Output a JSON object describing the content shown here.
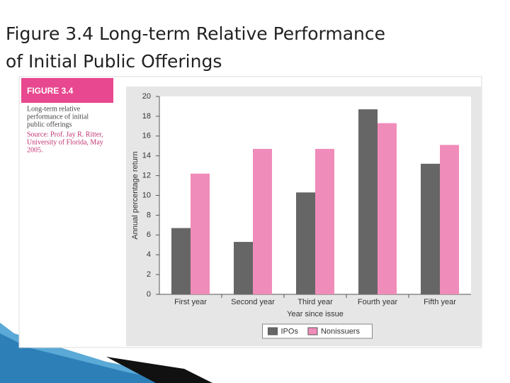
{
  "slide_title": [
    "Figure 3.4 Long-term Relative Performance",
    "of Initial Public Offerings"
  ],
  "figure": {
    "label": "FIGURE 3.4",
    "caption": [
      "Long-term relative",
      "performance of initial",
      "public offerings"
    ],
    "source": [
      "Source: Prof. Jay R. Ritter,",
      "University of Florida, May",
      "2005."
    ]
  },
  "chart_data": {
    "type": "bar",
    "x_label": "Year since issue",
    "y_label": "Annual percentage return",
    "categories": [
      "First year",
      "Second year",
      "Third year",
      "Fourth year",
      "Fifth year"
    ],
    "series": [
      {
        "name": "IPOs",
        "color": "#666666",
        "values": [
          6.7,
          5.3,
          10.3,
          18.7,
          13.2
        ]
      },
      {
        "name": "Nonissuers",
        "color": "#f08cba",
        "values": [
          12.2,
          14.7,
          14.7,
          17.3,
          15.1
        ]
      }
    ],
    "ylim": [
      0,
      20
    ],
    "yticks": [
      0,
      2,
      4,
      6,
      8,
      10,
      12,
      14,
      16,
      18,
      20
    ],
    "grid": false,
    "legend": "bottom"
  }
}
